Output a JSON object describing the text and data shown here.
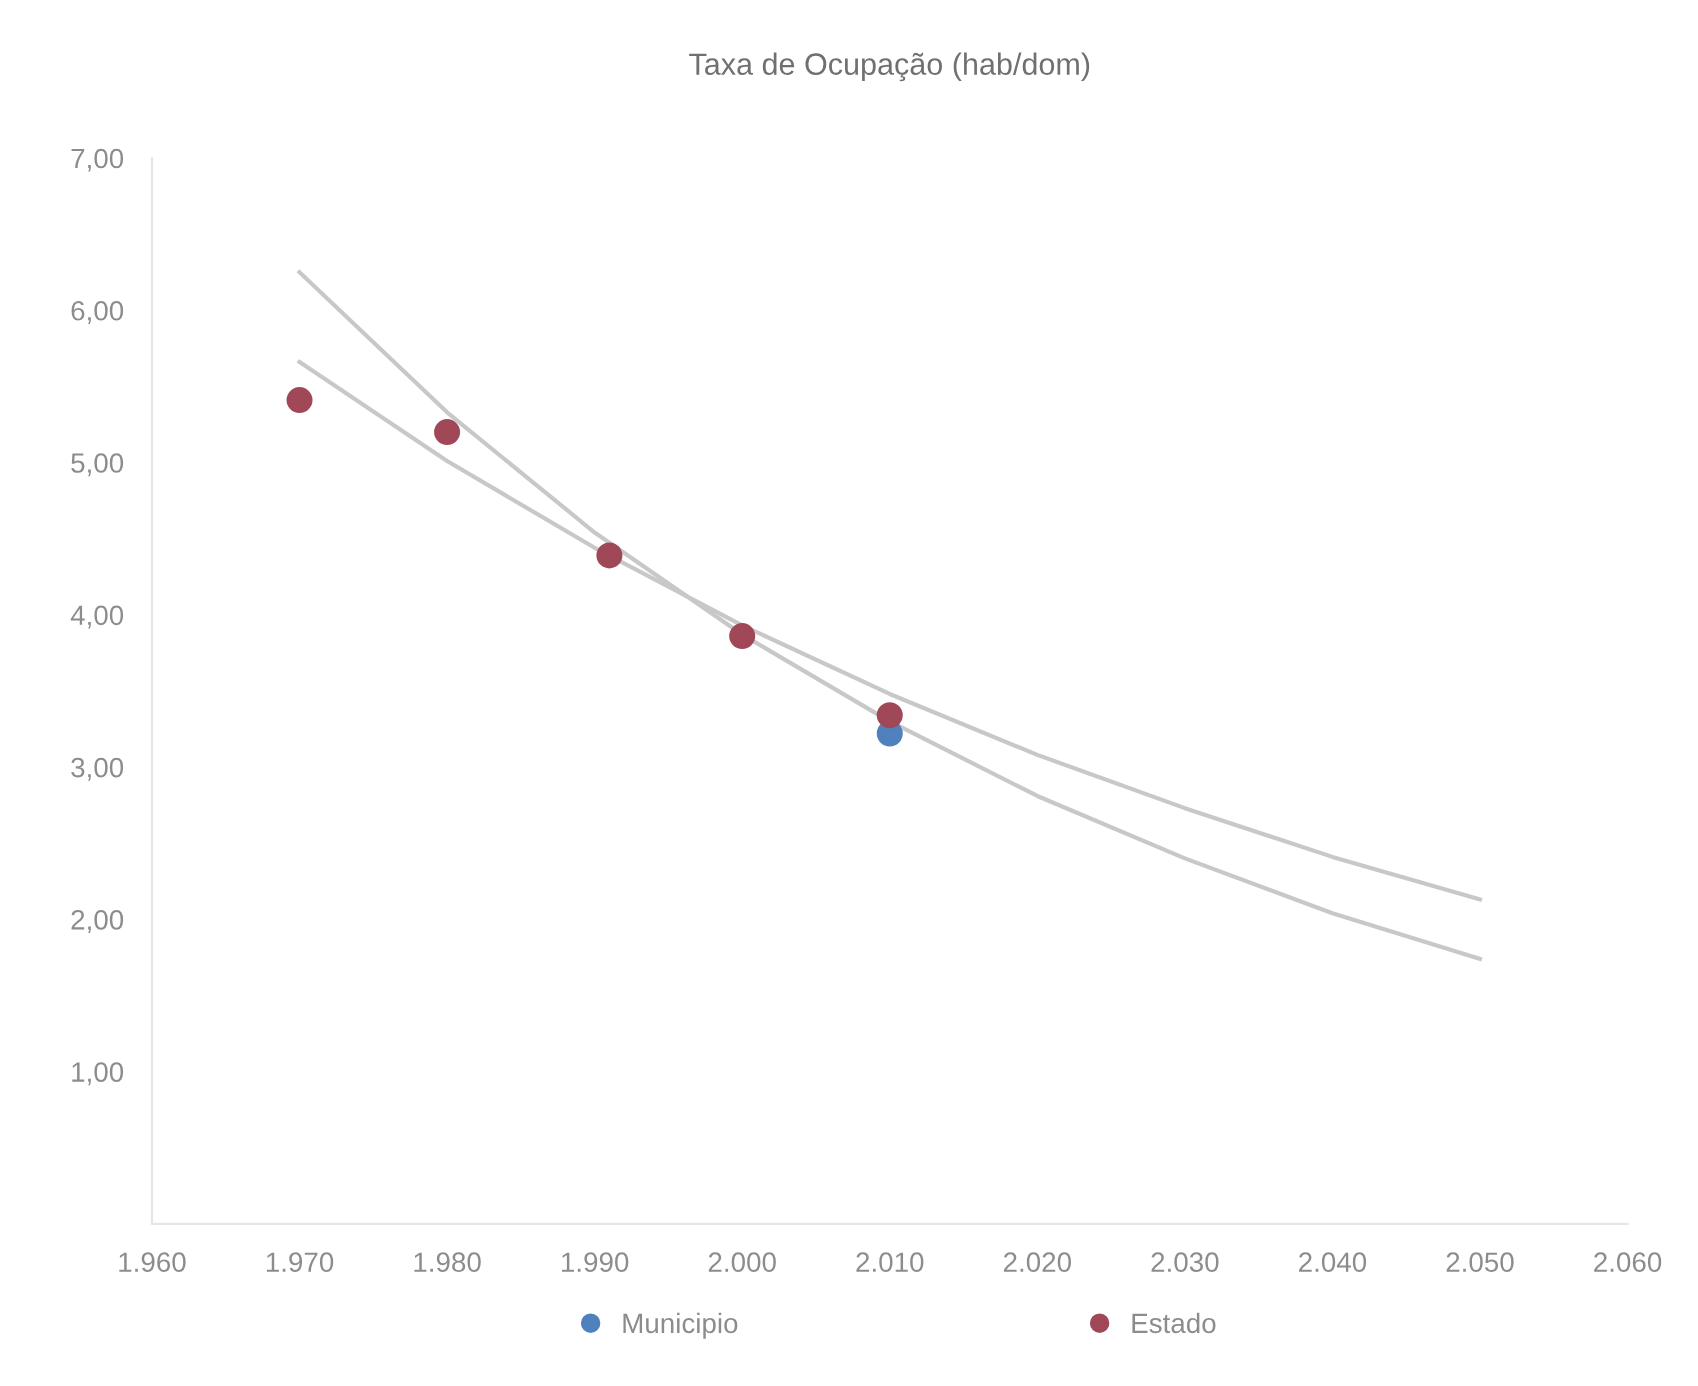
{
  "chart_data": {
    "type": "scatter",
    "title": "Taxa de Ocupação (hab/dom)",
    "xlim": [
      1960,
      2060
    ],
    "xticks": [
      {
        "value": 1960,
        "label": "1.960"
      },
      {
        "value": 1970,
        "label": "1.970"
      },
      {
        "value": 1980,
        "label": "1.980"
      },
      {
        "value": 1990,
        "label": "1.990"
      },
      {
        "value": 2000,
        "label": "2.000"
      },
      {
        "value": 2010,
        "label": "2.010"
      },
      {
        "value": 2020,
        "label": "2.020"
      },
      {
        "value": 2030,
        "label": "2.030"
      },
      {
        "value": 2040,
        "label": "2.040"
      },
      {
        "value": 2050,
        "label": "2.050"
      },
      {
        "value": 2060,
        "label": "2.060"
      }
    ],
    "ylim": [
      0,
      7
    ],
    "yticks": [
      {
        "value": 1,
        "label": "1,00"
      },
      {
        "value": 2,
        "label": "2,00"
      },
      {
        "value": 3,
        "label": "3,00"
      },
      {
        "value": 4,
        "label": "4,00"
      },
      {
        "value": 5,
        "label": "5,00"
      },
      {
        "value": 6,
        "label": "6,00"
      },
      {
        "value": 7,
        "label": "7,00"
      }
    ],
    "grid": false,
    "legend": "bottom",
    "series": [
      {
        "name": "Municipio",
        "color": "#4f81bd",
        "marker": "circle",
        "x": [
          2010
        ],
        "values": [
          3.22
        ]
      },
      {
        "name": "Estado",
        "color": "#a04858",
        "marker": "circle",
        "x": [
          1970,
          1980,
          1991,
          2000,
          2010
        ],
        "values": [
          5.41,
          5.2,
          4.39,
          3.86,
          3.34
        ]
      },
      {
        "type": "line",
        "marker": "none",
        "color": "#c8c8c8",
        "x": [
          1970,
          1980,
          1990,
          2000,
          2010,
          2020,
          2030,
          2040,
          2050
        ],
        "values": [
          6.25,
          5.33,
          4.54,
          3.87,
          3.3,
          2.81,
          2.4,
          2.04,
          1.74
        ]
      },
      {
        "type": "line",
        "marker": "none",
        "color": "#c8c8c8",
        "x": [
          1970,
          1980,
          1990,
          2000,
          2010,
          2020,
          2030,
          2040,
          2050
        ],
        "values": [
          5.66,
          5.01,
          4.44,
          3.93,
          3.48,
          3.08,
          2.73,
          2.41,
          2.13
        ]
      }
    ]
  }
}
